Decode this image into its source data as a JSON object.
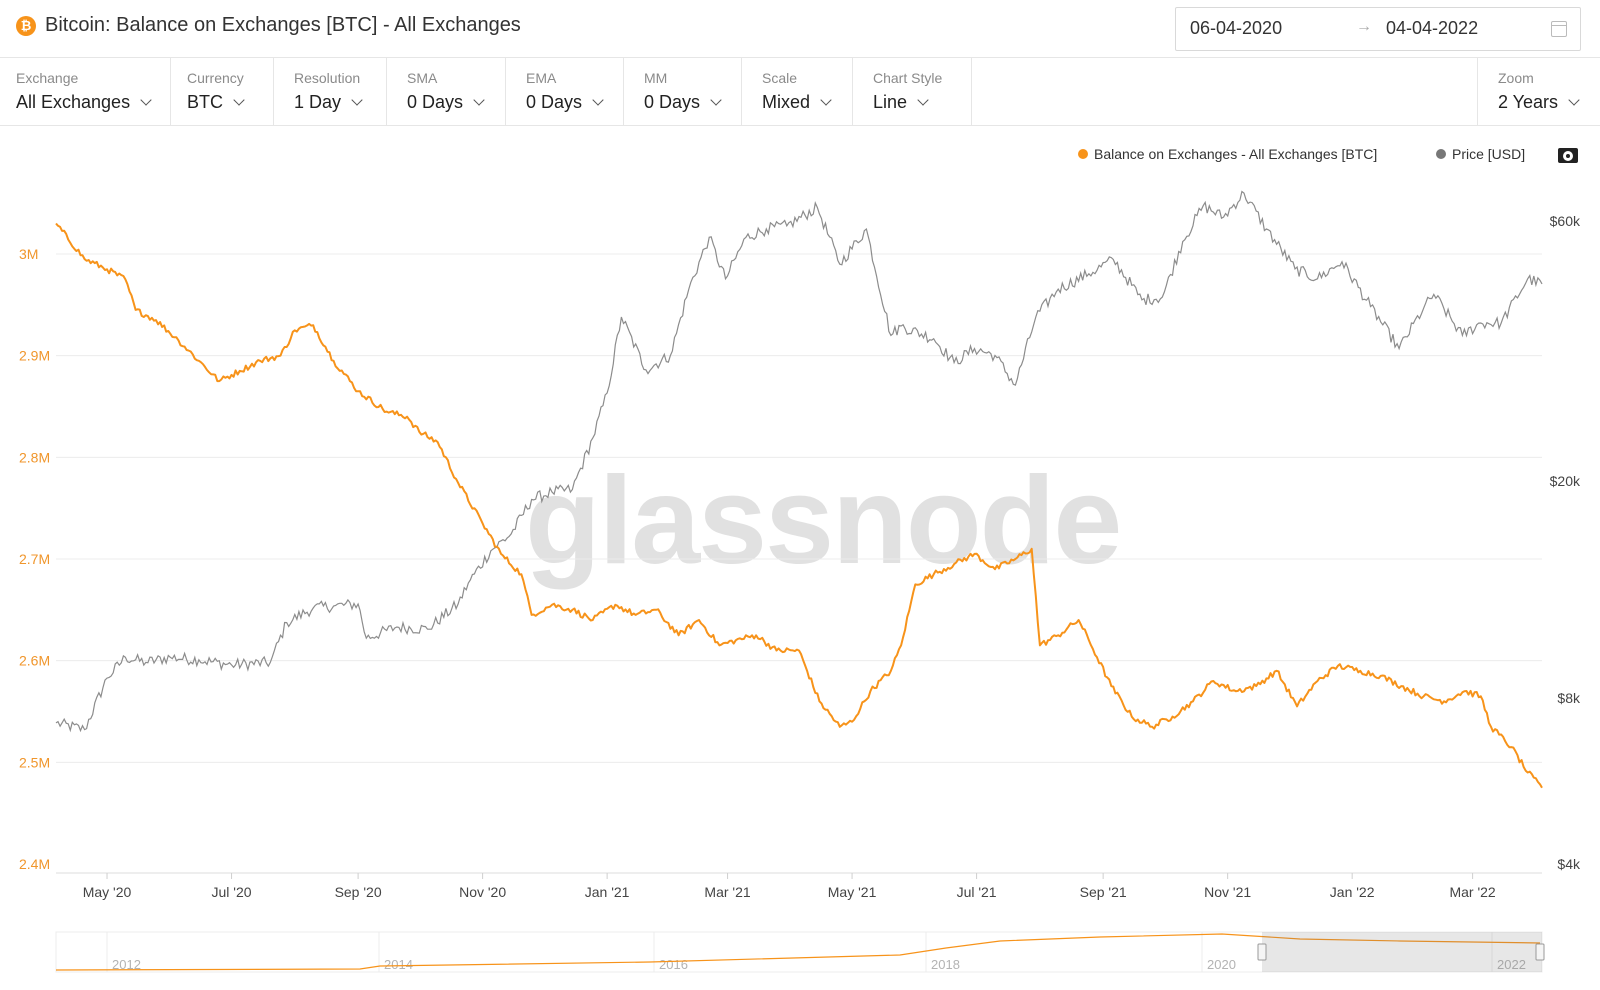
{
  "header": {
    "logo_glyph": "₿",
    "title": "Bitcoin: Balance on Exchanges [BTC] - All Exchanges",
    "date_start": "06-04-2020",
    "date_arrow": "→",
    "date_end": "04-04-2022"
  },
  "toolbar": {
    "controls": [
      {
        "label": "Exchange",
        "value": "All Exchanges"
      },
      {
        "label": "Currency",
        "value": "BTC"
      },
      {
        "label": "Resolution",
        "value": "1 Day"
      },
      {
        "label": "SMA",
        "value": "0 Days"
      },
      {
        "label": "EMA",
        "value": "0 Days"
      },
      {
        "label": "MM",
        "value": "0 Days"
      },
      {
        "label": "Scale",
        "value": "Mixed"
      },
      {
        "label": "Chart Style",
        "value": "Line"
      }
    ],
    "zoom": {
      "label": "Zoom",
      "value": "2 Years"
    }
  },
  "watermark": "glassnode",
  "colors": {
    "balance": "#f7931a",
    "price": "#8c8c8c",
    "grid": "#ececec"
  },
  "chart_data": {
    "type": "line",
    "title": "Bitcoin: Balance on Exchanges [BTC] - All Exchanges",
    "legend": [
      "Balance on Exchanges - All Exchanges [BTC]",
      "Price [USD]"
    ],
    "legend_position": "top-right",
    "grid": true,
    "x_tick_labels": [
      "May '20",
      "Jul '20",
      "Sep '20",
      "Nov '20",
      "Jan '21",
      "Mar '21",
      "May '21",
      "Jul '21",
      "Sep '21",
      "Nov '21",
      "Jan '22",
      "Mar '22"
    ],
    "y_left": {
      "ticks": [
        "2.4M",
        "2.5M",
        "2.6M",
        "2.7M",
        "2.8M",
        "2.9M",
        "3M"
      ],
      "ylim": [
        2400000,
        3000000
      ],
      "scale": "linear"
    },
    "y_right": {
      "ticks": [
        "$4k",
        "$8k",
        "$20k",
        "$60k"
      ],
      "tick_values": [
        4000,
        8000,
        20000,
        60000
      ],
      "scale": "log"
    },
    "series": [
      {
        "name": "Balance on Exchanges - All Exchanges [BTC]",
        "axis": "left",
        "points": [
          [
            "2020-04-06",
            3030000
          ],
          [
            "2020-04-20",
            2995000
          ],
          [
            "2020-05-01",
            2985000
          ],
          [
            "2020-05-10",
            2975000
          ],
          [
            "2020-05-15",
            2945000
          ],
          [
            "2020-05-25",
            2935000
          ],
          [
            "2020-06-05",
            2915000
          ],
          [
            "2020-06-15",
            2895000
          ],
          [
            "2020-06-25",
            2875000
          ],
          [
            "2020-07-05",
            2885000
          ],
          [
            "2020-07-15",
            2895000
          ],
          [
            "2020-07-25",
            2900000
          ],
          [
            "2020-08-01",
            2925000
          ],
          [
            "2020-08-10",
            2930000
          ],
          [
            "2020-08-20",
            2895000
          ],
          [
            "2020-09-01",
            2865000
          ],
          [
            "2020-09-15",
            2845000
          ],
          [
            "2020-09-25",
            2840000
          ],
          [
            "2020-10-01",
            2825000
          ],
          [
            "2020-10-10",
            2815000
          ],
          [
            "2020-10-20",
            2775000
          ],
          [
            "2020-11-01",
            2735000
          ],
          [
            "2020-11-10",
            2705000
          ],
          [
            "2020-11-20",
            2685000
          ],
          [
            "2020-11-25",
            2645000
          ],
          [
            "2020-12-05",
            2655000
          ],
          [
            "2020-12-15",
            2650000
          ],
          [
            "2020-12-25",
            2640000
          ],
          [
            "2021-01-05",
            2655000
          ],
          [
            "2021-01-15",
            2645000
          ],
          [
            "2021-01-25",
            2650000
          ],
          [
            "2021-02-05",
            2625000
          ],
          [
            "2021-02-15",
            2640000
          ],
          [
            "2021-02-25",
            2615000
          ],
          [
            "2021-03-05",
            2620000
          ],
          [
            "2021-03-15",
            2625000
          ],
          [
            "2021-03-25",
            2610000
          ],
          [
            "2021-04-05",
            2610000
          ],
          [
            "2021-04-15",
            2560000
          ],
          [
            "2021-04-25",
            2535000
          ],
          [
            "2021-05-01",
            2540000
          ],
          [
            "2021-05-10",
            2570000
          ],
          [
            "2021-05-20",
            2590000
          ],
          [
            "2021-05-25",
            2615000
          ],
          [
            "2021-06-01",
            2675000
          ],
          [
            "2021-06-10",
            2685000
          ],
          [
            "2021-06-20",
            2695000
          ],
          [
            "2021-06-30",
            2705000
          ],
          [
            "2021-07-10",
            2690000
          ],
          [
            "2021-07-20",
            2700000
          ],
          [
            "2021-07-28",
            2710000
          ],
          [
            "2021-08-01",
            2615000
          ],
          [
            "2021-08-10",
            2625000
          ],
          [
            "2021-08-20",
            2640000
          ],
          [
            "2021-08-25",
            2620000
          ],
          [
            "2021-09-05",
            2575000
          ],
          [
            "2021-09-15",
            2545000
          ],
          [
            "2021-09-25",
            2535000
          ],
          [
            "2021-10-05",
            2545000
          ],
          [
            "2021-10-15",
            2560000
          ],
          [
            "2021-10-25",
            2580000
          ],
          [
            "2021-11-05",
            2570000
          ],
          [
            "2021-11-15",
            2575000
          ],
          [
            "2021-11-25",
            2590000
          ],
          [
            "2021-12-05",
            2555000
          ],
          [
            "2021-12-15",
            2580000
          ],
          [
            "2021-12-25",
            2595000
          ],
          [
            "2022-01-05",
            2590000
          ],
          [
            "2022-01-15",
            2585000
          ],
          [
            "2022-01-25",
            2575000
          ],
          [
            "2022-02-05",
            2565000
          ],
          [
            "2022-02-15",
            2560000
          ],
          [
            "2022-02-25",
            2570000
          ],
          [
            "2022-03-05",
            2565000
          ],
          [
            "2022-03-10",
            2535000
          ],
          [
            "2022-03-20",
            2515000
          ],
          [
            "2022-03-28",
            2490000
          ],
          [
            "2022-04-04",
            2475000
          ]
        ]
      },
      {
        "name": "Price [USD]",
        "axis": "right",
        "points": [
          [
            "2020-04-06",
            7200
          ],
          [
            "2020-04-20",
            7000
          ],
          [
            "2020-05-01",
            8700
          ],
          [
            "2020-05-10",
            9500
          ],
          [
            "2020-05-20",
            9300
          ],
          [
            "2020-06-01",
            9500
          ],
          [
            "2020-06-15",
            9400
          ],
          [
            "2020-07-01",
            9200
          ],
          [
            "2020-07-20",
            9300
          ],
          [
            "2020-07-28",
            11000
          ],
          [
            "2020-08-10",
            11700
          ],
          [
            "2020-08-20",
            11800
          ],
          [
            "2020-09-01",
            11900
          ],
          [
            "2020-09-05",
            10300
          ],
          [
            "2020-09-20",
            10800
          ],
          [
            "2020-10-05",
            10700
          ],
          [
            "2020-10-20",
            11900
          ],
          [
            "2020-10-25",
            13000
          ],
          [
            "2020-11-05",
            14900
          ],
          [
            "2020-11-15",
            16000
          ],
          [
            "2020-11-25",
            18500
          ],
          [
            "2020-12-05",
            19100
          ],
          [
            "2020-12-15",
            19300
          ],
          [
            "2020-12-25",
            24000
          ],
          [
            "2021-01-01",
            29000
          ],
          [
            "2021-01-08",
            40000
          ],
          [
            "2021-01-20",
            32000
          ],
          [
            "2021-02-01",
            34000
          ],
          [
            "2021-02-10",
            45000
          ],
          [
            "2021-02-20",
            56000
          ],
          [
            "2021-02-28",
            47000
          ],
          [
            "2021-03-10",
            56000
          ],
          [
            "2021-03-20",
            58000
          ],
          [
            "2021-03-30",
            58800
          ],
          [
            "2021-04-14",
            63500
          ],
          [
            "2021-04-25",
            50000
          ],
          [
            "2021-05-08",
            58000
          ],
          [
            "2021-05-20",
            37000
          ],
          [
            "2021-05-25",
            38500
          ],
          [
            "2021-06-10",
            36500
          ],
          [
            "2021-06-20",
            33000
          ],
          [
            "2021-06-30",
            35000
          ],
          [
            "2021-07-10",
            34000
          ],
          [
            "2021-07-20",
            30000
          ],
          [
            "2021-07-30",
            40000
          ],
          [
            "2021-08-10",
            45000
          ],
          [
            "2021-08-25",
            48000
          ],
          [
            "2021-09-06",
            51000
          ],
          [
            "2021-09-20",
            43000
          ],
          [
            "2021-09-30",
            43500
          ],
          [
            "2021-10-10",
            55000
          ],
          [
            "2021-10-20",
            64000
          ],
          [
            "2021-10-30",
            61000
          ],
          [
            "2021-11-09",
            67500
          ],
          [
            "2021-11-20",
            58000
          ],
          [
            "2021-12-04",
            49000
          ],
          [
            "2021-12-15",
            47000
          ],
          [
            "2021-12-27",
            50500
          ],
          [
            "2022-01-10",
            41800
          ],
          [
            "2022-01-24",
            35000
          ],
          [
            "2022-02-05",
            41500
          ],
          [
            "2022-02-10",
            44000
          ],
          [
            "2022-02-24",
            37000
          ],
          [
            "2022-03-05",
            39000
          ],
          [
            "2022-03-15",
            39000
          ],
          [
            "2022-03-28",
            47000
          ],
          [
            "2022-04-04",
            46000
          ]
        ]
      }
    ],
    "navigator": {
      "year_labels": [
        "2012",
        "2014",
        "2016",
        "2018",
        "2020",
        "2022"
      ],
      "series_name": "Balance on Exchanges - All Exchanges [BTC]",
      "selected_range": [
        "2020-04-06",
        "2022-04-04"
      ]
    }
  }
}
